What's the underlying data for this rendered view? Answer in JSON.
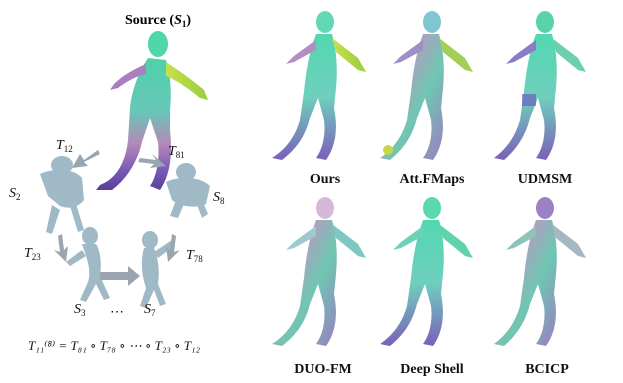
{
  "source_title": {
    "text": "Source (",
    "sym": "S",
    "sub": "1",
    "close": ")"
  },
  "cycle_labels": {
    "S2": {
      "sym": "S",
      "sub": "2"
    },
    "S3": {
      "sym": "S",
      "sub": "3"
    },
    "S7": {
      "sym": "S",
      "sub": "7"
    },
    "S8": {
      "sym": "S",
      "sub": "8"
    },
    "T12": {
      "sym": "T",
      "sub": "12"
    },
    "T81": {
      "sym": "T",
      "sub": "81"
    },
    "T23": {
      "sym": "T",
      "sub": "23"
    },
    "T78": {
      "sym": "T",
      "sub": "78"
    },
    "dots": "⋯"
  },
  "formula": "T₁₁⁽⁸⁾ = T₈₁ ∘ T₇₈ ∘ ⋯ ∘ T₂₃ ∘ T₁₂",
  "methods": [
    "Ours",
    "Att.FMaps",
    "UDMSM",
    "DUO-FM",
    "Deep Shell",
    "BCICP"
  ],
  "colors": {
    "mesh_gray": "#9fb9c6",
    "arrow_gray": "#9aa5b0"
  }
}
